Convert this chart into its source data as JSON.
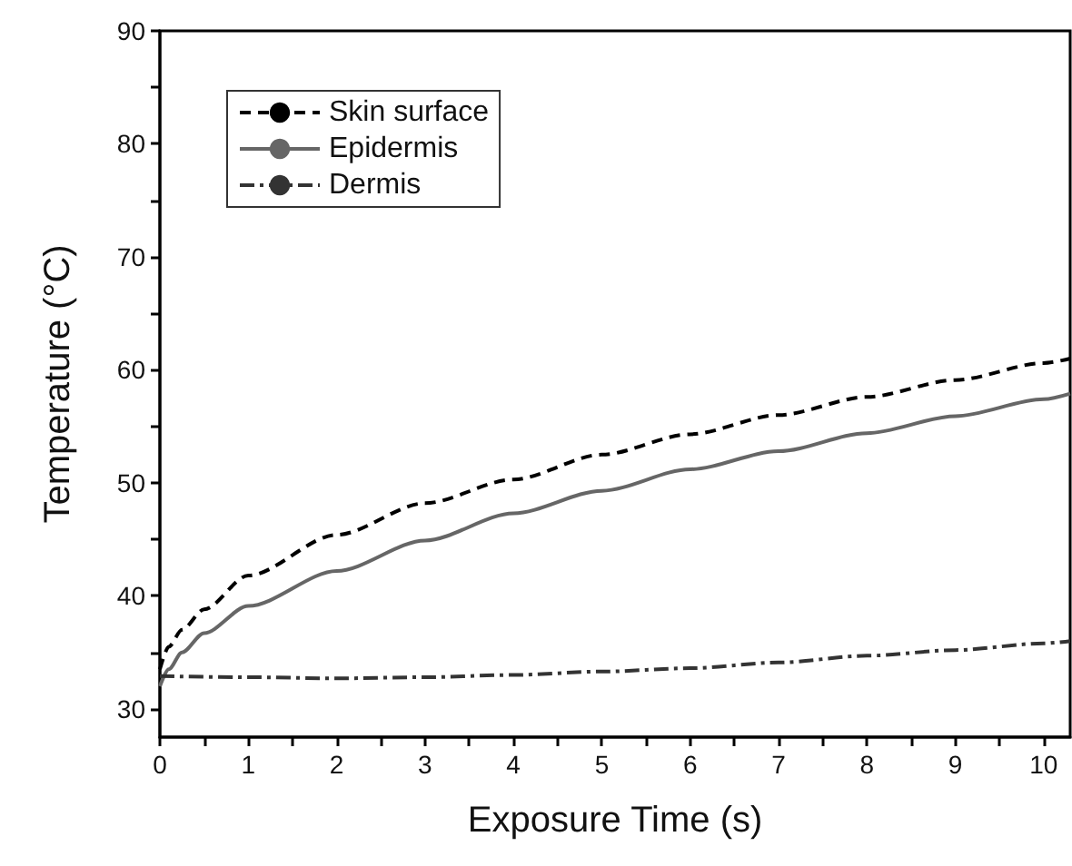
{
  "chart_data": {
    "type": "line",
    "xlabel": "Exposure Time (s)",
    "ylabel": "Temperature (°C)",
    "xlim": [
      0,
      10.3
    ],
    "ylim": [
      27.5,
      90
    ],
    "xticks": [
      0,
      {
        "value": 0.5,
        "label": null
      },
      1,
      {
        "value": 1.5,
        "label": null
      },
      2,
      {
        "value": 2.5,
        "label": null
      },
      3,
      {
        "value": 3.5,
        "label": null
      },
      4,
      {
        "value": 4.5,
        "label": null
      },
      5,
      {
        "value": 5.5,
        "label": null
      },
      6,
      {
        "value": 6.5,
        "label": null
      },
      7,
      {
        "value": 7.5,
        "label": null
      },
      8,
      {
        "value": 8.5,
        "label": null
      },
      9,
      {
        "value": 9.5,
        "label": null
      },
      10
    ],
    "yticks": [
      30,
      {
        "value": 35,
        "label": null
      },
      40,
      {
        "value": 45,
        "label": null
      },
      50,
      {
        "value": 55,
        "label": null
      },
      60,
      {
        "value": 65,
        "label": null
      },
      70,
      {
        "value": 75,
        "label": null
      },
      80,
      {
        "value": 85,
        "label": null
      },
      90
    ],
    "grid": false,
    "legend": "top left",
    "series": [
      {
        "name": "Skin surface",
        "color": "#000000",
        "line_style": "dashed",
        "x": [
          0,
          0.1,
          0.25,
          0.5,
          1,
          2,
          3,
          4,
          5,
          6,
          7,
          8,
          9,
          10,
          10.3
        ],
        "values": [
          33.5,
          35.5,
          37,
          38.8,
          41.8,
          45.4,
          48.2,
          50.3,
          52.5,
          54.3,
          56,
          57.6,
          59.1,
          60.6,
          61
        ]
      },
      {
        "name": "Epidermis",
        "color": "#666666",
        "line_style": "solid",
        "x": [
          0,
          0.1,
          0.25,
          0.5,
          1,
          2,
          3,
          4,
          5,
          6,
          7,
          8,
          9,
          10,
          10.3
        ],
        "values": [
          32,
          33.5,
          35,
          36.7,
          39.1,
          42.2,
          44.9,
          47.3,
          49.3,
          51.2,
          52.8,
          54.4,
          55.9,
          57.4,
          57.9
        ]
      },
      {
        "name": "Dermis",
        "color": "#333333",
        "line_style": "dashdot",
        "x": [
          0,
          1,
          2,
          3,
          4,
          5,
          6,
          7,
          8,
          9,
          10,
          10.3
        ],
        "values": [
          32.9,
          32.8,
          32.7,
          32.8,
          33,
          33.3,
          33.6,
          34.1,
          34.7,
          35.2,
          35.8,
          36
        ]
      }
    ]
  }
}
